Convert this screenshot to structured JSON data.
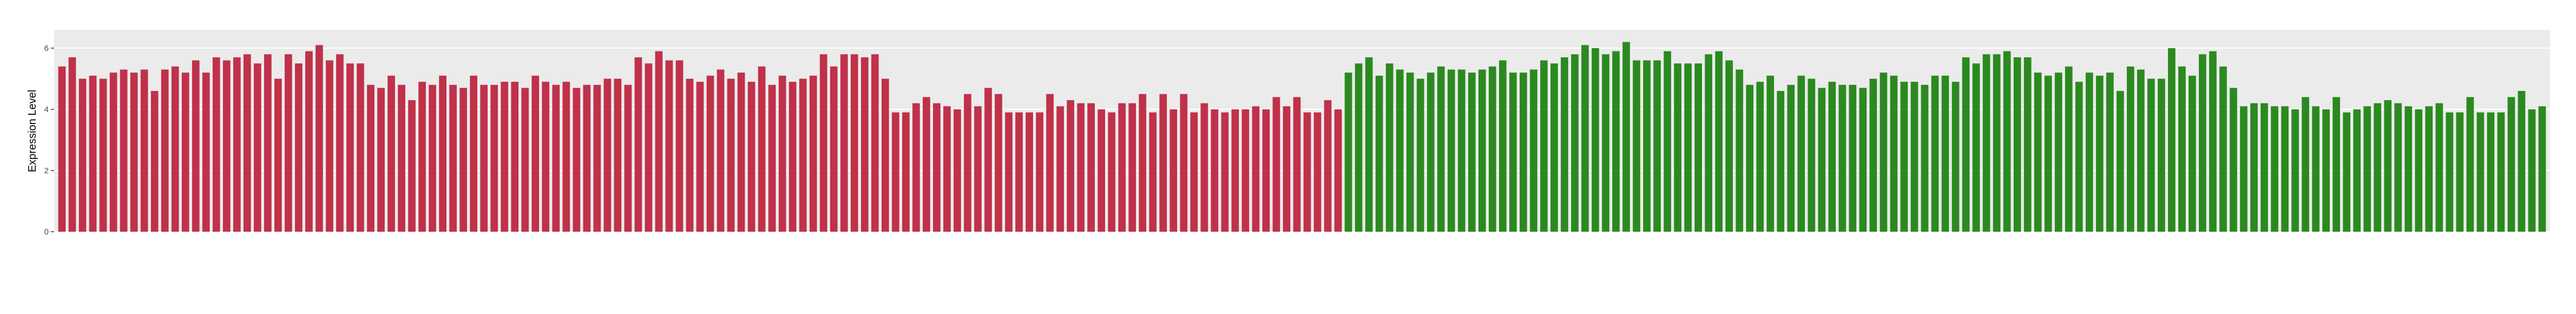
{
  "chart_data": {
    "type": "bar",
    "y_label": "Expression Level",
    "ylim": [
      0,
      6.6
    ],
    "yticks": [
      0,
      2,
      4,
      6
    ],
    "grid": true,
    "background": "#ebebeb",
    "groups": [
      {
        "color": "#c0314a",
        "values": [
          5.4,
          5.7,
          5.0,
          5.1,
          5.0,
          5.2,
          5.3,
          5.2,
          5.3,
          4.6,
          5.3,
          5.4,
          5.2,
          5.6,
          5.2,
          5.7,
          5.6,
          5.7,
          5.8,
          5.5,
          5.8,
          5.0,
          5.8,
          5.5,
          5.9,
          6.1,
          5.6,
          5.8,
          5.5,
          5.5,
          4.8,
          4.7,
          5.1,
          4.8,
          4.3,
          4.9,
          4.8,
          5.1,
          4.8,
          4.7,
          5.1,
          4.8,
          4.8,
          4.9,
          4.9,
          4.7,
          5.1,
          4.9,
          4.8,
          4.9,
          4.7,
          4.8,
          4.8,
          5.0,
          5.0,
          4.8,
          5.7,
          5.5,
          5.9,
          5.6,
          5.6,
          5.0,
          4.9,
          5.1,
          5.3,
          5.0,
          5.2,
          4.9,
          5.4,
          4.8,
          5.1,
          4.9,
          5.0,
          5.1,
          5.8,
          5.4,
          5.8,
          5.8,
          5.7,
          5.8,
          5.0,
          3.9,
          3.9,
          4.2,
          4.4,
          4.2,
          4.1,
          4.0,
          4.5,
          4.1,
          4.7,
          4.5,
          3.9,
          3.9,
          3.9,
          3.9,
          4.5,
          4.1,
          4.3,
          4.2,
          4.2,
          4.0,
          3.9,
          4.2,
          4.2,
          4.5,
          3.9,
          4.5,
          4.0,
          4.5,
          3.9,
          4.2,
          4.0,
          3.9,
          4.0,
          4.0,
          4.1,
          4.0,
          4.4,
          4.1,
          4.4,
          3.9,
          3.9,
          4.3,
          4.0
        ]
      },
      {
        "color": "#2b8a1f",
        "values": [
          5.2,
          5.5,
          5.7,
          5.1,
          5.5,
          5.3,
          5.2,
          5.0,
          5.2,
          5.4,
          5.3,
          5.3,
          5.2,
          5.3,
          5.4,
          5.6,
          5.2,
          5.2,
          5.3,
          5.6,
          5.5,
          5.7,
          5.8,
          6.1,
          6.0,
          5.8,
          5.9,
          6.2,
          5.6,
          5.6,
          5.6,
          5.9,
          5.5,
          5.5,
          5.5,
          5.8,
          5.9,
          5.6,
          5.3,
          4.8,
          4.9,
          5.1,
          4.6,
          4.8,
          5.1,
          5.0,
          4.7,
          4.9,
          4.8,
          4.8,
          4.7,
          5.0,
          5.2,
          5.1,
          4.9,
          4.9,
          4.8,
          5.1,
          5.1,
          4.9,
          5.7,
          5.5,
          5.8,
          5.8,
          5.9,
          5.7,
          5.7,
          5.2,
          5.1,
          5.2,
          5.4,
          4.9,
          5.2,
          5.1,
          5.2,
          4.6,
          5.4,
          5.3,
          5.0,
          5.0,
          6.0,
          5.4,
          5.1,
          5.8,
          5.9,
          5.4,
          4.7,
          4.1,
          4.2,
          4.2,
          4.1,
          4.1,
          4.0,
          4.4,
          4.1,
          4.0,
          4.4,
          3.9,
          4.0,
          4.1,
          4.2,
          4.3,
          4.2,
          4.1,
          4.0,
          4.1,
          4.2,
          3.9,
          3.9,
          4.4,
          3.9,
          3.9,
          3.9,
          4.4,
          4.6,
          4.0,
          4.1
        ]
      }
    ]
  }
}
